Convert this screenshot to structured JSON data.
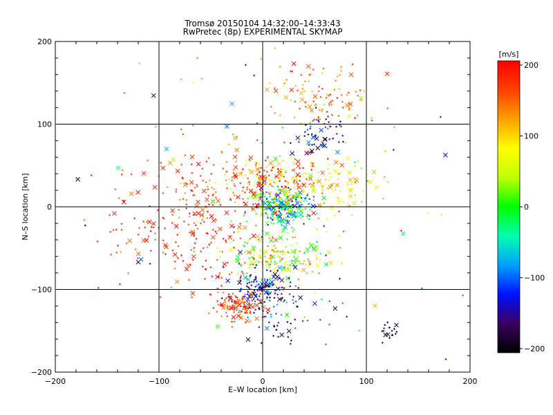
{
  "chart_data": {
    "type": "scatter",
    "title": "Tromsø 20150104 14:32:00–14:33:43",
    "subtitle": "RwPretec (8p) EXPERIMENTAL SKYMAP",
    "xlabel": "E–W location [km]",
    "ylabel": "N–S location [km]",
    "xlim": [
      -200,
      200
    ],
    "ylim": [
      -200,
      200
    ],
    "xticks": [
      "−200",
      "−100",
      "0",
      "100",
      "200"
    ],
    "yticks": [
      "−200",
      "−100",
      "0",
      "100",
      "200"
    ],
    "grid": true,
    "colorbar": {
      "label": "[m/s]",
      "range": [
        -200,
        200
      ],
      "ticks": [
        "200",
        "100",
        "0",
        "−100",
        "−200"
      ],
      "colors": [
        "#000000",
        "#3a0060",
        "#0010ff",
        "#00a0ff",
        "#00ffb0",
        "#00ff00",
        "#c0ff00",
        "#ffff00",
        "#ffa000",
        "#ff4000",
        "#ff0000"
      ]
    },
    "clusters": [
      {
        "cx": 20,
        "cy": 0,
        "sx": 15,
        "sy": 12,
        "n": 230,
        "vmin": -130,
        "vmax": 40
      },
      {
        "cx": 12,
        "cy": 30,
        "sx": 28,
        "sy": 18,
        "n": 200,
        "vmin": 40,
        "vmax": 200
      },
      {
        "cx": 65,
        "cy": 25,
        "sx": 25,
        "sy": 18,
        "n": 90,
        "vmin": 20,
        "vmax": 140
      },
      {
        "cx": 15,
        "cy": -62,
        "sx": 25,
        "sy": 15,
        "n": 190,
        "vmin": -40,
        "vmax": 150
      },
      {
        "cx": 0,
        "cy": -100,
        "sx": 15,
        "sy": 15,
        "n": 130,
        "vmin": -200,
        "vmax": -60
      },
      {
        "cx": -25,
        "cy": -122,
        "sx": 12,
        "sy": 10,
        "n": 110,
        "vmin": 120,
        "vmax": 200
      },
      {
        "cx": 50,
        "cy": 135,
        "sx": 30,
        "sy": 25,
        "n": 110,
        "vmin": 100,
        "vmax": 200
      },
      {
        "cx": 55,
        "cy": 85,
        "sx": 12,
        "sy": 12,
        "n": 55,
        "vmin": -200,
        "vmax": -80
      },
      {
        "cx": -55,
        "cy": 20,
        "sx": 40,
        "sy": 30,
        "n": 140,
        "vmin": 120,
        "vmax": 200
      },
      {
        "cx": -70,
        "cy": -45,
        "sx": 40,
        "sy": 30,
        "n": 140,
        "vmin": 140,
        "vmax": 200
      },
      {
        "cx": 20,
        "cy": -130,
        "sx": 20,
        "sy": 18,
        "n": 55,
        "vmin": -200,
        "vmax": -80
      },
      {
        "cx": 120,
        "cy": -150,
        "sx": 6,
        "sy": 6,
        "n": 18,
        "vmin": -200,
        "vmax": -160
      },
      {
        "cx": 0,
        "cy": 0,
        "sx": 95,
        "sy": 100,
        "n": 110,
        "vmin": -200,
        "vmax": 200
      }
    ]
  }
}
